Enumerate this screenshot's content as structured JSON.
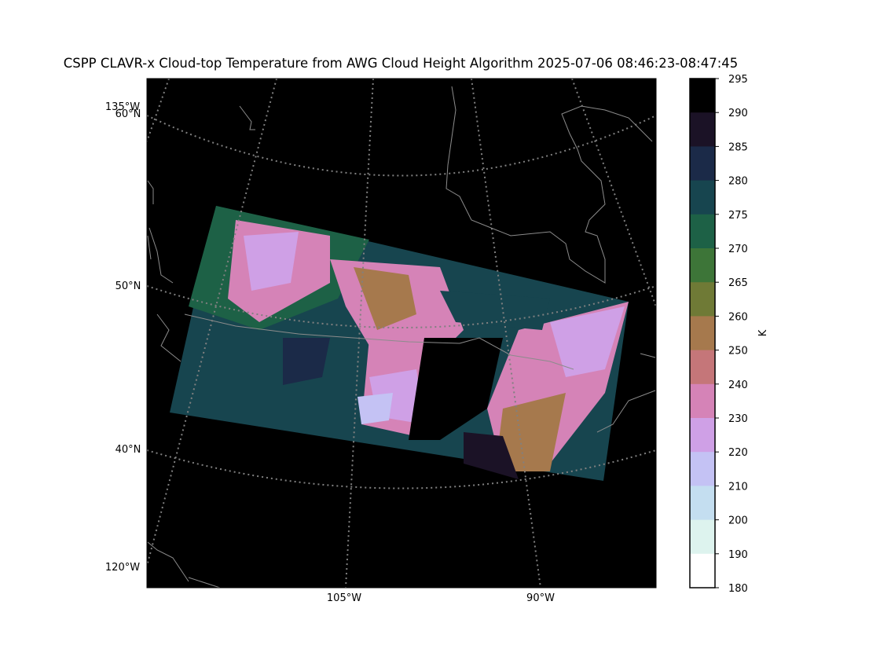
{
  "figure": {
    "title": "CSPP CLAVR-x Cloud-top Temperature from AWG Cloud Height Algorithm 2025-07-06 08:46:23-08:47:45",
    "map": {
      "background": "#000000",
      "graticule_color": "#808080",
      "coastline_color": "#8c8c8c",
      "longitude_labels_bottom": [
        "105°W",
        "90°W"
      ],
      "longitude_labels_left": [
        "135°W",
        "120°W"
      ],
      "latitude_labels_left": [
        "60°N",
        "50°N",
        "40°N"
      ]
    },
    "colorbar": {
      "label": "K",
      "range": [
        180,
        295
      ],
      "ticks": [
        "295",
        "290",
        "285",
        "280",
        "275",
        "270",
        "265",
        "260",
        "250",
        "240",
        "230",
        "220",
        "210",
        "200",
        "190",
        "180"
      ],
      "color_bins": [
        {
          "from": 290,
          "to": 295,
          "color": "#000000"
        },
        {
          "from": 285,
          "to": 290,
          "color": "#1b1226"
        },
        {
          "from": 280,
          "to": 285,
          "color": "#1b2a48"
        },
        {
          "from": 275,
          "to": 280,
          "color": "#17454f"
        },
        {
          "from": 270,
          "to": 275,
          "color": "#1d6146"
        },
        {
          "from": 265,
          "to": 270,
          "color": "#3d7538"
        },
        {
          "from": 260,
          "to": 265,
          "color": "#6f7a36"
        },
        {
          "from": 250,
          "to": 260,
          "color": "#a6794d"
        },
        {
          "from": 240,
          "to": 250,
          "color": "#c57679"
        },
        {
          "from": 230,
          "to": 240,
          "color": "#d583b7"
        },
        {
          "from": 220,
          "to": 230,
          "color": "#cfa0e6"
        },
        {
          "from": 210,
          "to": 220,
          "color": "#c4c2f4"
        },
        {
          "from": 200,
          "to": 210,
          "color": "#c4def0"
        },
        {
          "from": 190,
          "to": 200,
          "color": "#ddf3ee"
        },
        {
          "from": 180,
          "to": 190,
          "color": "#ffffff"
        }
      ]
    }
  }
}
